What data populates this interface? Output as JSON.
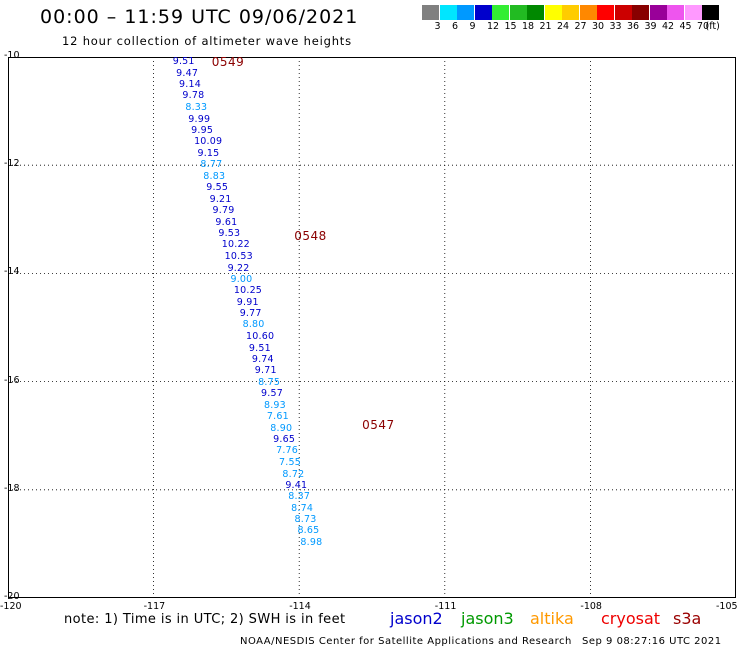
{
  "header": {
    "title": "00:00 – 11:59 UTC 09/06/2021",
    "subtitle": "12 hour collection of altimeter wave heights"
  },
  "legend": {
    "colors": [
      "#808080",
      "#00e6ff",
      "#0099ff",
      "#0000cc",
      "#33ee33",
      "#22bb22",
      "#008800",
      "#ffff00",
      "#ffcc00",
      "#ff8800",
      "#ff0000",
      "#cc0000",
      "#880000",
      "#990099",
      "#ee55ee",
      "#ff99ff",
      "#000000"
    ],
    "ticks": [
      "3",
      "6",
      "9",
      "12",
      "15",
      "18",
      "21",
      "24",
      "27",
      "30",
      "33",
      "36",
      "39",
      "42",
      "45",
      "70"
    ],
    "unit": "(ft)"
  },
  "axes": {
    "lat_ticks": [
      "-10",
      "-12",
      "-14",
      "-16",
      "-18",
      "-20"
    ],
    "lon_ticks": [
      "-120",
      "-117",
      "-114",
      "-111",
      "-108",
      "-105"
    ],
    "lat_range": [
      -20,
      -10
    ],
    "lon_range": [
      -120,
      -105
    ]
  },
  "time_labels": [
    {
      "text": "0549",
      "lat": -10.1,
      "lon": -115.7
    },
    {
      "text": "0548",
      "lat": -13.3,
      "lon": -114.0
    },
    {
      "text": "0547",
      "lat": -16.8,
      "lon": -112.6
    }
  ],
  "observations": [
    {
      "value": "9.51",
      "lat": -10.1,
      "lon": -116.4,
      "color": "#0000cc"
    },
    {
      "value": "9.47",
      "lat": -10.31,
      "lon": -116.33,
      "color": "#0000cc"
    },
    {
      "value": "9.14",
      "lat": -10.52,
      "lon": -116.27,
      "color": "#0000cc"
    },
    {
      "value": "9.78",
      "lat": -10.73,
      "lon": -116.2,
      "color": "#0000cc"
    },
    {
      "value": "8.33",
      "lat": -10.94,
      "lon": -116.14,
      "color": "#0099ff"
    },
    {
      "value": "9.99",
      "lat": -11.16,
      "lon": -116.08,
      "color": "#0000cc"
    },
    {
      "value": "9.95",
      "lat": -11.37,
      "lon": -116.02,
      "color": "#0000cc"
    },
    {
      "value": "10.09",
      "lat": -11.58,
      "lon": -115.96,
      "color": "#0000cc"
    },
    {
      "value": "9.15",
      "lat": -11.79,
      "lon": -115.89,
      "color": "#0000cc"
    },
    {
      "value": "8.77",
      "lat": -12.0,
      "lon": -115.83,
      "color": "#0099ff"
    },
    {
      "value": "8.83",
      "lat": -12.21,
      "lon": -115.77,
      "color": "#0099ff"
    },
    {
      "value": "9.55",
      "lat": -12.42,
      "lon": -115.71,
      "color": "#0000cc"
    },
    {
      "value": "9.21",
      "lat": -12.64,
      "lon": -115.64,
      "color": "#0000cc"
    },
    {
      "value": "9.79",
      "lat": -12.85,
      "lon": -115.58,
      "color": "#0000cc"
    },
    {
      "value": "9.61",
      "lat": -13.06,
      "lon": -115.52,
      "color": "#0000cc"
    },
    {
      "value": "9.53",
      "lat": -13.27,
      "lon": -115.46,
      "color": "#0000cc"
    },
    {
      "value": "10.22",
      "lat": -13.48,
      "lon": -115.39,
      "color": "#0000cc"
    },
    {
      "value": "10.53",
      "lat": -13.69,
      "lon": -115.33,
      "color": "#0000cc"
    },
    {
      "value": "9.22",
      "lat": -13.91,
      "lon": -115.27,
      "color": "#0000cc"
    },
    {
      "value": "9.00",
      "lat": -14.12,
      "lon": -115.21,
      "color": "#0099ff"
    },
    {
      "value": "10.25",
      "lat": -14.33,
      "lon": -115.14,
      "color": "#0000cc"
    },
    {
      "value": "9.91",
      "lat": -14.54,
      "lon": -115.08,
      "color": "#0000cc"
    },
    {
      "value": "9.77",
      "lat": -14.75,
      "lon": -115.02,
      "color": "#0000cc"
    },
    {
      "value": "8.80",
      "lat": -14.96,
      "lon": -114.96,
      "color": "#0099ff"
    },
    {
      "value": "10.60",
      "lat": -15.18,
      "lon": -114.89,
      "color": "#0000cc"
    },
    {
      "value": "9.51",
      "lat": -15.39,
      "lon": -114.83,
      "color": "#0000cc"
    },
    {
      "value": "9.74",
      "lat": -15.6,
      "lon": -114.77,
      "color": "#0000cc"
    },
    {
      "value": "9.71",
      "lat": -15.81,
      "lon": -114.71,
      "color": "#0000cc"
    },
    {
      "value": "8.75",
      "lat": -16.02,
      "lon": -114.64,
      "color": "#0099ff"
    },
    {
      "value": "9.57",
      "lat": -16.23,
      "lon": -114.58,
      "color": "#0000cc"
    },
    {
      "value": "8.93",
      "lat": -16.45,
      "lon": -114.52,
      "color": "#0099ff"
    },
    {
      "value": "7.61",
      "lat": -16.66,
      "lon": -114.46,
      "color": "#0099ff"
    },
    {
      "value": "8.90",
      "lat": -16.87,
      "lon": -114.39,
      "color": "#0099ff"
    },
    {
      "value": "9.65",
      "lat": -17.08,
      "lon": -114.33,
      "color": "#0000cc"
    },
    {
      "value": "7.76",
      "lat": -17.29,
      "lon": -114.27,
      "color": "#0099ff"
    },
    {
      "value": "7.55",
      "lat": -17.5,
      "lon": -114.21,
      "color": "#0099ff"
    },
    {
      "value": "8.72",
      "lat": -17.72,
      "lon": -114.14,
      "color": "#0099ff"
    },
    {
      "value": "9.41",
      "lat": -17.93,
      "lon": -114.08,
      "color": "#0000cc"
    },
    {
      "value": "8.37",
      "lat": -18.14,
      "lon": -114.02,
      "color": "#0099ff"
    },
    {
      "value": "8.74",
      "lat": -18.35,
      "lon": -113.96,
      "color": "#0099ff"
    },
    {
      "value": "8.73",
      "lat": -18.56,
      "lon": -113.89,
      "color": "#0099ff"
    },
    {
      "value": "8.65",
      "lat": -18.77,
      "lon": -113.83,
      "color": "#0099ff"
    },
    {
      "value": "8.98",
      "lat": -18.98,
      "lon": -113.77,
      "color": "#0099ff"
    }
  ],
  "satellites": [
    {
      "name": "jason2",
      "color": "#0000cc"
    },
    {
      "name": "jason3",
      "color": "#009900"
    },
    {
      "name": "altika",
      "color": "#ff9900"
    },
    {
      "name": "cryosat",
      "color": "#ee0000"
    },
    {
      "name": "s3a",
      "color": "#990000"
    }
  ],
  "note": "note: 1) Time is in UTC; 2) SWH is in feet",
  "footer": {
    "credit": "NOAA/NESDIS Center for Satellite Applications and Research",
    "timestamp": "Sep  9 08:27:16 UTC 2021"
  }
}
